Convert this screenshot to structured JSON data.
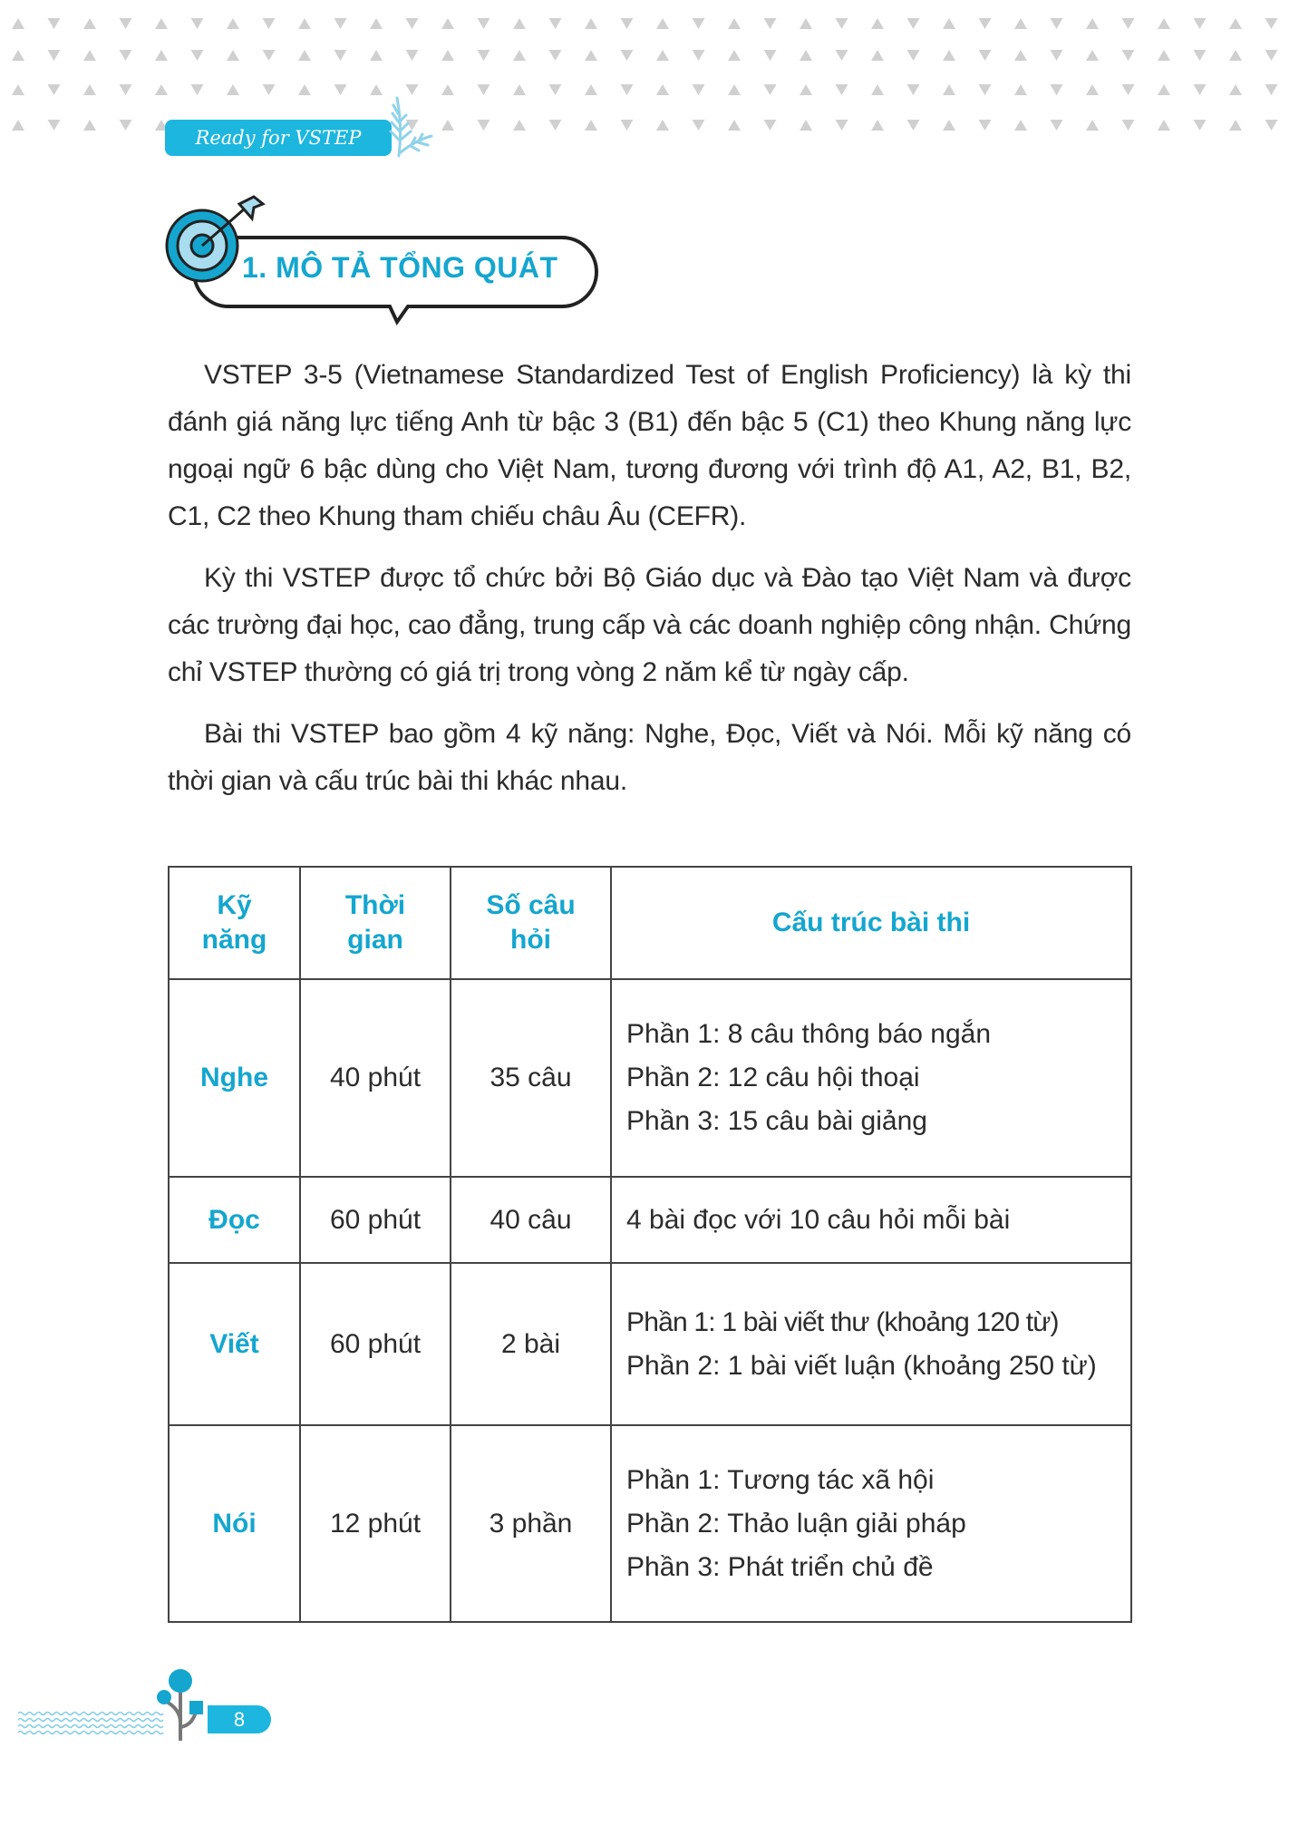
{
  "header": {
    "badge": "Ready for VSTEP",
    "accent": "#1cb6de"
  },
  "section": {
    "title": "1. MÔ TẢ TỔNG QUÁT",
    "icon": "target-arrow-icon"
  },
  "paragraphs": [
    "VSTEP 3-5 (Vietnamese Standardized Test of English Proficiency) là kỳ thi đánh giá năng lực tiếng Anh từ bậc 3 (B1) đến bậc 5 (C1) theo Khung năng lực ngoại ngữ 6 bậc dùng cho Việt Nam, tương đương với trình độ A1, A2, B1, B2, C1, C2  theo Khung tham chiếu châu Âu (CEFR).",
    "Kỳ thi VSTEP được tổ chức bởi Bộ Giáo dục và Đào tạo Việt Nam và được các trường đại học, cao đẳng, trung cấp và các doanh nghiệp công nhận. Chứng chỉ VSTEP thường có giá trị trong vòng 2 năm kể từ ngày cấp.",
    "Bài thi VSTEP bao gồm 4 kỹ năng: Nghe, Đọc, Viết và Nói. Mỗi kỹ năng có thời gian và cấu trúc bài thi khác nhau."
  ],
  "table": {
    "headers": [
      "Kỹ năng",
      "Thời gian",
      "Số câu hỏi",
      "Cấu trúc bài thi"
    ],
    "rows": [
      {
        "skill": "Nghe",
        "time": "40 phút",
        "count": "35 câu",
        "structure": [
          "Phần 1: 8 câu thông báo ngắn",
          "Phần 2: 12 câu hội thoại",
          "Phần 3: 15 câu bài giảng"
        ]
      },
      {
        "skill": "Đọc",
        "time": "60 phút",
        "count": "40 câu",
        "structure": [
          "4 bài đọc với 10 câu hỏi mỗi bài"
        ]
      },
      {
        "skill": "Viết",
        "time": "60 phút",
        "count": "2 bài",
        "structure": [
          "Phần 1: 1 bài viết thư (khoảng 120 từ)",
          "Phần 2: 1 bài viết luận (khoảng 250 từ)"
        ]
      },
      {
        "skill": "Nói",
        "time": "12 phút",
        "count": "3 phần",
        "structure": [
          "Phần 1: Tương tác xã hội",
          "Phần 2: Thảo luận giải pháp",
          "Phần 3: Phát triển chủ đề"
        ]
      }
    ]
  },
  "footer": {
    "page_number": "8"
  }
}
